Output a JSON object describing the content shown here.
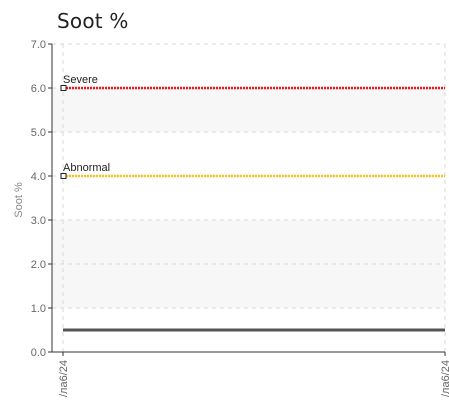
{
  "chart_data": {
    "type": "line",
    "title": "Soot %",
    "ylabel": "Soot %",
    "ylim": [
      0,
      7
    ],
    "yticks": [
      "0.0",
      "1.0",
      "2.0",
      "3.0",
      "4.0",
      "5.0",
      "6.0",
      "7.0"
    ],
    "x": [
      "Mar6/24",
      "Mar6/24"
    ],
    "x_tick_labels": [
      "/ла6/24",
      "/ла6/24"
    ],
    "grid": true,
    "series": [
      {
        "values": [
          0.5,
          0.5
        ],
        "color": "#555555"
      }
    ],
    "thresholds": [
      {
        "name": "Severe",
        "value": 6.0,
        "color": "#e8171b"
      },
      {
        "name": "Abnormal",
        "value": 4.0,
        "color": "#f2c41a"
      }
    ]
  }
}
